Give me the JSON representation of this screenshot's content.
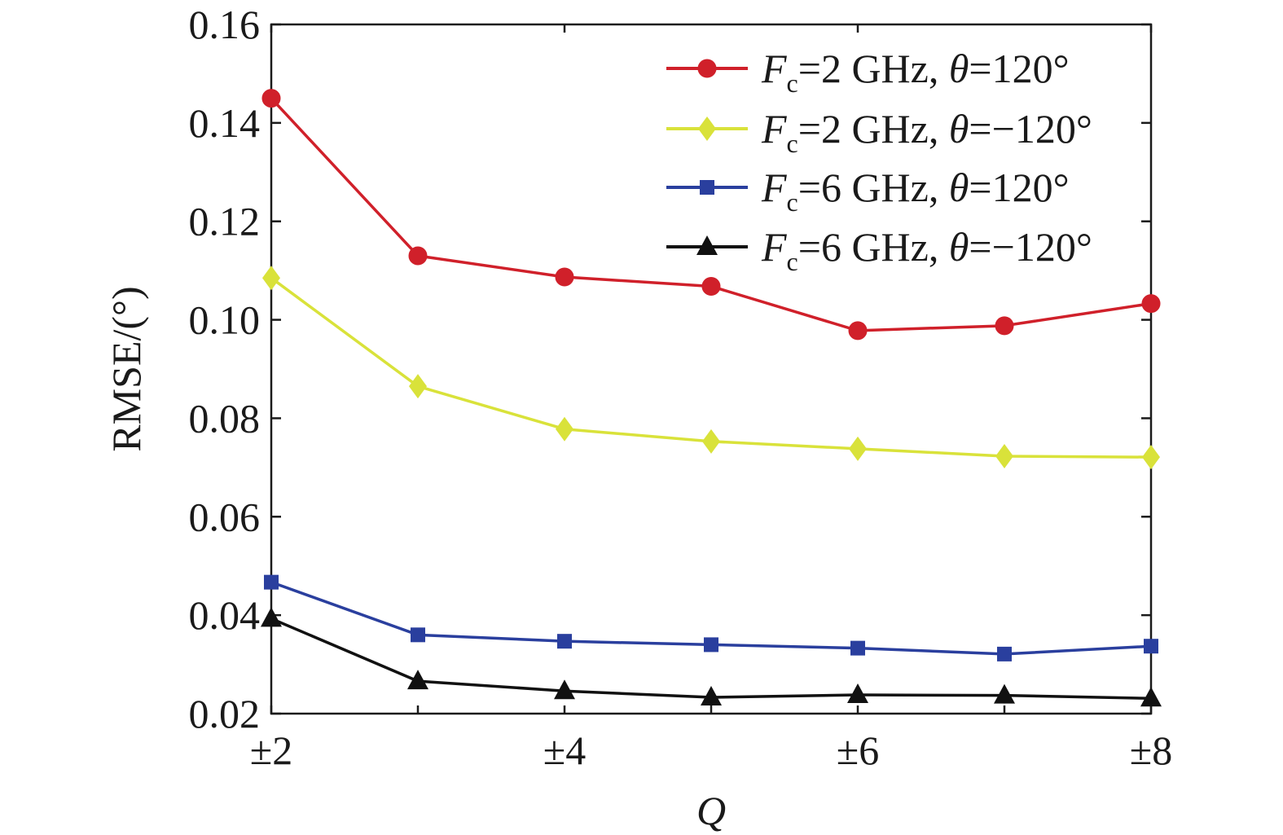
{
  "chart_data": {
    "type": "line",
    "x": [
      2,
      3,
      4,
      5,
      6,
      7,
      8
    ],
    "xticks": [
      {
        "x": 2,
        "label": "±2"
      },
      {
        "x": 4,
        "label": "±4"
      },
      {
        "x": 6,
        "label": "±6"
      },
      {
        "x": 8,
        "label": "±8"
      }
    ],
    "xlim": [
      2,
      8
    ],
    "ylim": [
      0.02,
      0.16
    ],
    "yticks": [
      "0.02",
      "0.04",
      "0.06",
      "0.08",
      "0.10",
      "0.12",
      "0.14",
      "0.16"
    ],
    "xlabel": "Q",
    "ylabel": "RMSE/(°)",
    "title": "",
    "grid": false,
    "legend_position": "top-right",
    "series": [
      {
        "legend": {
          "var": "F",
          "sub": "c",
          "freq": "=2 GHz, ",
          "theta": "θ",
          "angle": "=120°"
        },
        "color": "#d0202a",
        "marker": "circle",
        "values": [
          0.145,
          0.113,
          0.1087,
          0.1068,
          0.0978,
          0.0988,
          0.1033
        ]
      },
      {
        "legend": {
          "var": "F",
          "sub": "c",
          "freq": "=2 GHz, ",
          "theta": "θ",
          "angle": "=−120°"
        },
        "color": "#d9e23a",
        "marker": "diamond",
        "values": [
          0.1085,
          0.0865,
          0.0778,
          0.0753,
          0.0738,
          0.0723,
          0.0721
        ]
      },
      {
        "legend": {
          "var": "F",
          "sub": "c",
          "freq": "=6 GHz, ",
          "theta": "θ",
          "angle": "=120°"
        },
        "color": "#2a3f9e",
        "marker": "square",
        "values": [
          0.0467,
          0.036,
          0.0347,
          0.034,
          0.0333,
          0.0321,
          0.0337
        ]
      },
      {
        "legend": {
          "var": "F",
          "sub": "c",
          "freq": "=6 GHz, ",
          "theta": "θ",
          "angle": "=−120°"
        },
        "color": "#111111",
        "marker": "triangle",
        "values": [
          0.0393,
          0.0266,
          0.0246,
          0.0233,
          0.0238,
          0.0237,
          0.0231
        ]
      }
    ]
  }
}
